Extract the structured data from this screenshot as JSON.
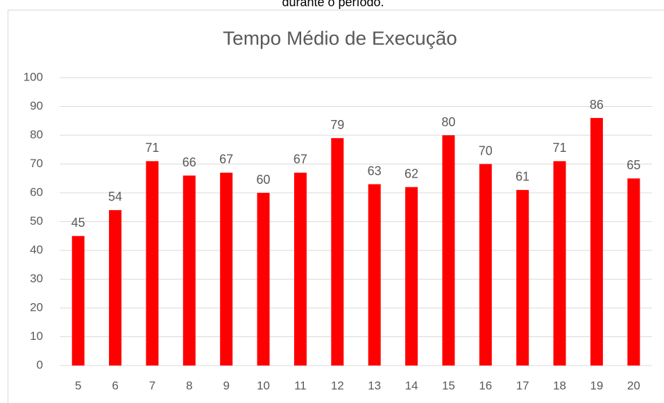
{
  "text_above": "durante o período.",
  "chart_data": {
    "type": "bar",
    "title": "Tempo Médio de Execução",
    "categories": [
      "5",
      "6",
      "7",
      "8",
      "9",
      "10",
      "11",
      "12",
      "13",
      "14",
      "15",
      "16",
      "17",
      "18",
      "19",
      "20"
    ],
    "values": [
      45,
      54,
      71,
      66,
      67,
      60,
      67,
      79,
      63,
      62,
      80,
      70,
      61,
      71,
      86,
      65
    ],
    "color": "#ff0000",
    "ylim": [
      0,
      100
    ],
    "yticks": [
      0,
      10,
      20,
      30,
      40,
      50,
      60,
      70,
      80,
      90,
      100
    ],
    "grid": true
  }
}
